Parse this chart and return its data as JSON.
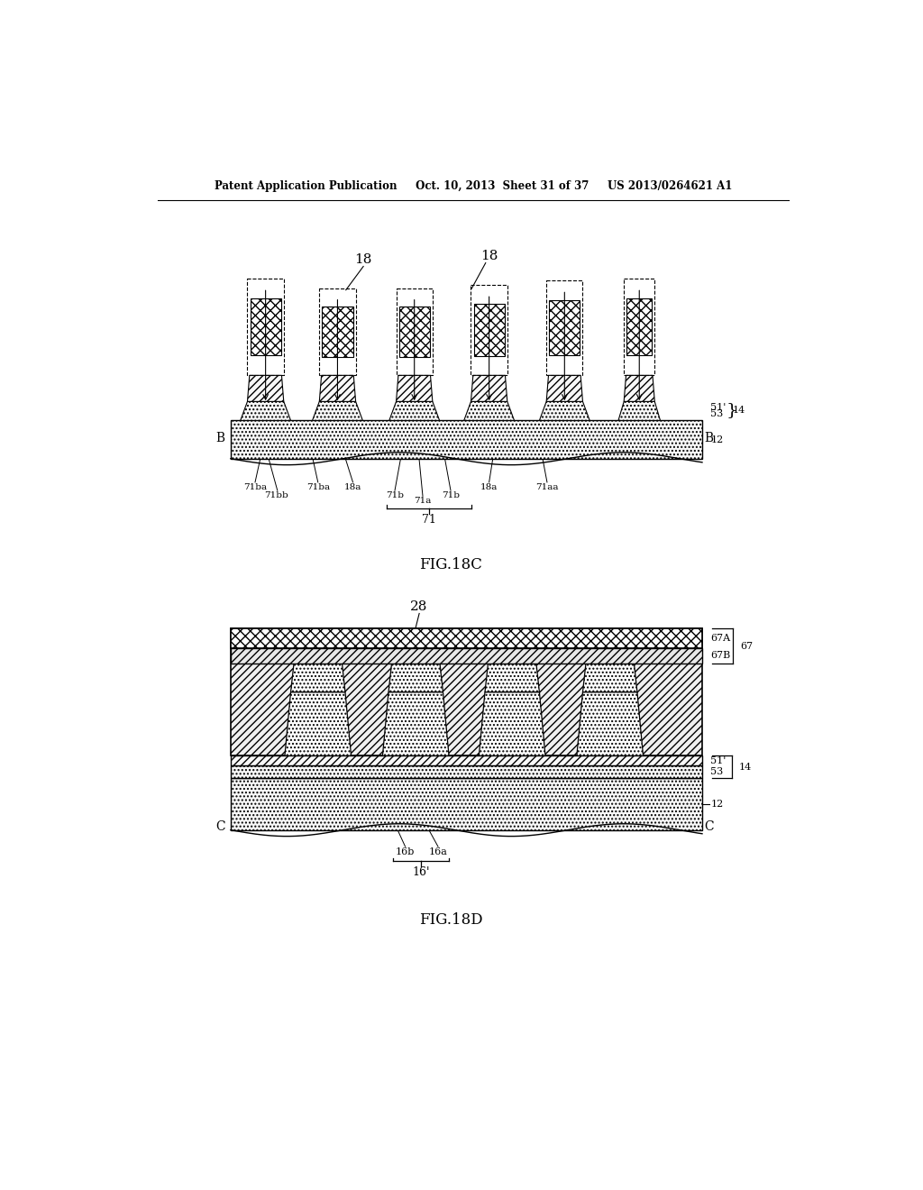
{
  "bg_color": "#ffffff",
  "header_text": "Patent Application Publication     Oct. 10, 2013  Sheet 31 of 37     US 2013/0264621 A1",
  "fig18c_caption": "FIG.18C",
  "fig18d_caption": "FIG.18D"
}
